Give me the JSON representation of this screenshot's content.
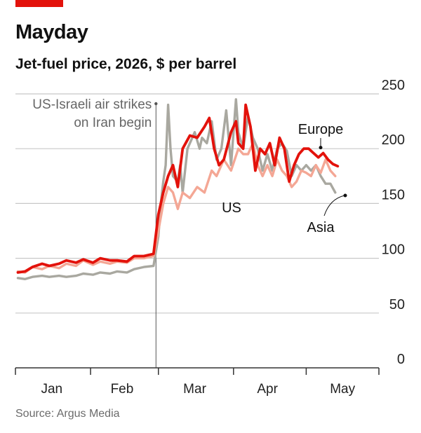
{
  "header": {
    "title": "Mayday",
    "subtitle": "Jet-fuel price, 2026, $ per barrel"
  },
  "footer": {
    "source": "Source: Argus Media"
  },
  "colors": {
    "accent": "#e3120b",
    "europe": "#e3120b",
    "us": "#f4a795",
    "asia": "#a9a8a0",
    "grid": "#c8c8c8",
    "axis": "#333333"
  },
  "chart_data": {
    "type": "line",
    "title": "Jet-fuel price, 2026, $ per barrel",
    "xlabel": "",
    "ylabel": "",
    "ylim": [
      0,
      250
    ],
    "yticks": [
      0,
      50,
      100,
      150,
      200,
      250
    ],
    "xlim": [
      "2026-01-01",
      "2026-05-31"
    ],
    "xticks": [
      {
        "label": "Jan",
        "date": "2026-01-16"
      },
      {
        "label": "Feb",
        "date": "2026-02-14"
      },
      {
        "label": "Mar",
        "date": "2026-03-16"
      },
      {
        "label": "Apr",
        "date": "2026-04-15"
      },
      {
        "label": "May",
        "date": "2026-05-16"
      }
    ],
    "grid": true,
    "annotations": [
      {
        "date": "2026-02-28",
        "lines": [
          "US-Israeli air strikes",
          "on Iran begin"
        ]
      }
    ],
    "series": [
      {
        "name": "Asia",
        "points": [
          [
            "2026-01-02",
            82
          ],
          [
            "2026-01-05",
            81
          ],
          [
            "2026-01-08",
            83
          ],
          [
            "2026-01-12",
            84
          ],
          [
            "2026-01-15",
            83
          ],
          [
            "2026-01-19",
            84
          ],
          [
            "2026-01-22",
            83
          ],
          [
            "2026-01-26",
            84
          ],
          [
            "2026-01-29",
            86
          ],
          [
            "2026-02-02",
            85
          ],
          [
            "2026-02-05",
            87
          ],
          [
            "2026-02-09",
            86
          ],
          [
            "2026-02-12",
            88
          ],
          [
            "2026-02-16",
            87
          ],
          [
            "2026-02-19",
            90
          ],
          [
            "2026-02-23",
            92
          ],
          [
            "2026-02-27",
            93
          ],
          [
            "2026-03-01",
            120
          ],
          [
            "2026-03-02",
            150
          ],
          [
            "2026-03-03",
            170
          ],
          [
            "2026-03-04",
            185
          ],
          [
            "2026-03-05",
            240
          ],
          [
            "2026-03-06",
            200
          ],
          [
            "2026-03-07",
            175
          ],
          [
            "2026-03-09",
            170
          ],
          [
            "2026-03-10",
            185
          ],
          [
            "2026-03-11",
            160
          ],
          [
            "2026-03-13",
            200
          ],
          [
            "2026-03-16",
            215
          ],
          [
            "2026-03-18",
            200
          ],
          [
            "2026-03-19",
            210
          ],
          [
            "2026-03-21",
            205
          ],
          [
            "2026-03-23",
            225
          ],
          [
            "2026-03-25",
            190
          ],
          [
            "2026-03-27",
            200
          ],
          [
            "2026-03-29",
            235
          ],
          [
            "2026-03-31",
            185
          ],
          [
            "2026-04-02",
            245
          ],
          [
            "2026-04-03",
            215
          ],
          [
            "2026-04-05",
            200
          ],
          [
            "2026-04-07",
            230
          ],
          [
            "2026-04-09",
            210
          ],
          [
            "2026-04-11",
            200
          ],
          [
            "2026-04-13",
            180
          ],
          [
            "2026-04-15",
            195
          ],
          [
            "2026-04-17",
            180
          ],
          [
            "2026-04-19",
            200
          ],
          [
            "2026-04-21",
            205
          ],
          [
            "2026-04-23",
            198
          ],
          [
            "2026-04-25",
            175
          ],
          [
            "2026-04-27",
            185
          ],
          [
            "2026-04-29",
            180
          ],
          [
            "2026-05-01",
            185
          ],
          [
            "2026-05-03",
            180
          ],
          [
            "2026-05-05",
            185
          ],
          [
            "2026-05-07",
            175
          ],
          [
            "2026-05-09",
            168
          ],
          [
            "2026-05-11",
            168
          ],
          [
            "2026-05-13",
            160
          ]
        ]
      },
      {
        "name": "US",
        "points": [
          [
            "2026-01-02",
            88
          ],
          [
            "2026-01-05",
            87
          ],
          [
            "2026-01-08",
            92
          ],
          [
            "2026-01-12",
            90
          ],
          [
            "2026-01-15",
            93
          ],
          [
            "2026-01-19",
            91
          ],
          [
            "2026-01-22",
            95
          ],
          [
            "2026-01-26",
            93
          ],
          [
            "2026-01-29",
            98
          ],
          [
            "2026-02-02",
            94
          ],
          [
            "2026-02-05",
            97
          ],
          [
            "2026-02-09",
            95
          ],
          [
            "2026-02-12",
            97
          ],
          [
            "2026-02-16",
            96
          ],
          [
            "2026-02-19",
            100
          ],
          [
            "2026-02-23",
            100
          ],
          [
            "2026-02-27",
            102
          ],
          [
            "2026-03-01",
            125
          ],
          [
            "2026-03-03",
            150
          ],
          [
            "2026-03-05",
            165
          ],
          [
            "2026-03-07",
            160
          ],
          [
            "2026-03-09",
            145
          ],
          [
            "2026-03-11",
            160
          ],
          [
            "2026-03-14",
            155
          ],
          [
            "2026-03-17",
            165
          ],
          [
            "2026-03-20",
            160
          ],
          [
            "2026-03-23",
            180
          ],
          [
            "2026-03-25",
            175
          ],
          [
            "2026-03-28",
            190
          ],
          [
            "2026-03-31",
            180
          ],
          [
            "2026-04-03",
            200
          ],
          [
            "2026-04-05",
            195
          ],
          [
            "2026-04-07",
            195
          ],
          [
            "2026-04-09",
            205
          ],
          [
            "2026-04-11",
            185
          ],
          [
            "2026-04-13",
            175
          ],
          [
            "2026-04-15",
            185
          ],
          [
            "2026-04-17",
            175
          ],
          [
            "2026-04-19",
            190
          ],
          [
            "2026-04-21",
            180
          ],
          [
            "2026-04-23",
            175
          ],
          [
            "2026-04-25",
            165
          ],
          [
            "2026-04-27",
            170
          ],
          [
            "2026-04-29",
            180
          ],
          [
            "2026-05-01",
            178
          ],
          [
            "2026-05-03",
            175
          ],
          [
            "2026-05-05",
            185
          ],
          [
            "2026-05-07",
            178
          ],
          [
            "2026-05-09",
            190
          ],
          [
            "2026-05-11",
            180
          ],
          [
            "2026-05-13",
            175
          ]
        ]
      },
      {
        "name": "Europe",
        "points": [
          [
            "2026-01-02",
            87
          ],
          [
            "2026-01-05",
            88
          ],
          [
            "2026-01-08",
            92
          ],
          [
            "2026-01-12",
            95
          ],
          [
            "2026-01-15",
            93
          ],
          [
            "2026-01-19",
            95
          ],
          [
            "2026-01-22",
            98
          ],
          [
            "2026-01-26",
            96
          ],
          [
            "2026-01-29",
            99
          ],
          [
            "2026-02-02",
            96
          ],
          [
            "2026-02-05",
            100
          ],
          [
            "2026-02-09",
            98
          ],
          [
            "2026-02-12",
            98
          ],
          [
            "2026-02-16",
            97
          ],
          [
            "2026-02-19",
            102
          ],
          [
            "2026-02-23",
            102
          ],
          [
            "2026-02-27",
            104
          ],
          [
            "2026-03-01",
            140
          ],
          [
            "2026-03-03",
            160
          ],
          [
            "2026-03-05",
            175
          ],
          [
            "2026-03-07",
            185
          ],
          [
            "2026-03-09",
            165
          ],
          [
            "2026-03-11",
            200
          ],
          [
            "2026-03-14",
            212
          ],
          [
            "2026-03-17",
            210
          ],
          [
            "2026-03-20",
            220
          ],
          [
            "2026-03-22",
            228
          ],
          [
            "2026-03-24",
            200
          ],
          [
            "2026-03-26",
            185
          ],
          [
            "2026-03-28",
            190
          ],
          [
            "2026-03-31",
            215
          ],
          [
            "2026-04-02",
            225
          ],
          [
            "2026-04-03",
            205
          ],
          [
            "2026-04-05",
            200
          ],
          [
            "2026-04-06",
            240
          ],
          [
            "2026-04-08",
            220
          ],
          [
            "2026-04-10",
            180
          ],
          [
            "2026-04-12",
            200
          ],
          [
            "2026-04-14",
            195
          ],
          [
            "2026-04-16",
            205
          ],
          [
            "2026-04-18",
            185
          ],
          [
            "2026-04-20",
            210
          ],
          [
            "2026-04-22",
            200
          ],
          [
            "2026-04-24",
            170
          ],
          [
            "2026-04-26",
            185
          ],
          [
            "2026-04-28",
            195
          ],
          [
            "2026-04-30",
            200
          ],
          [
            "2026-05-02",
            200
          ],
          [
            "2026-05-04",
            196
          ],
          [
            "2026-05-06",
            192
          ],
          [
            "2026-05-08",
            196
          ],
          [
            "2026-05-10",
            190
          ],
          [
            "2026-05-12",
            186
          ],
          [
            "2026-05-14",
            184
          ]
        ]
      }
    ],
    "series_labels": [
      {
        "name": "Europe",
        "text": "Europe"
      },
      {
        "name": "US",
        "text": "US"
      },
      {
        "name": "Asia",
        "text": "Asia"
      }
    ]
  }
}
